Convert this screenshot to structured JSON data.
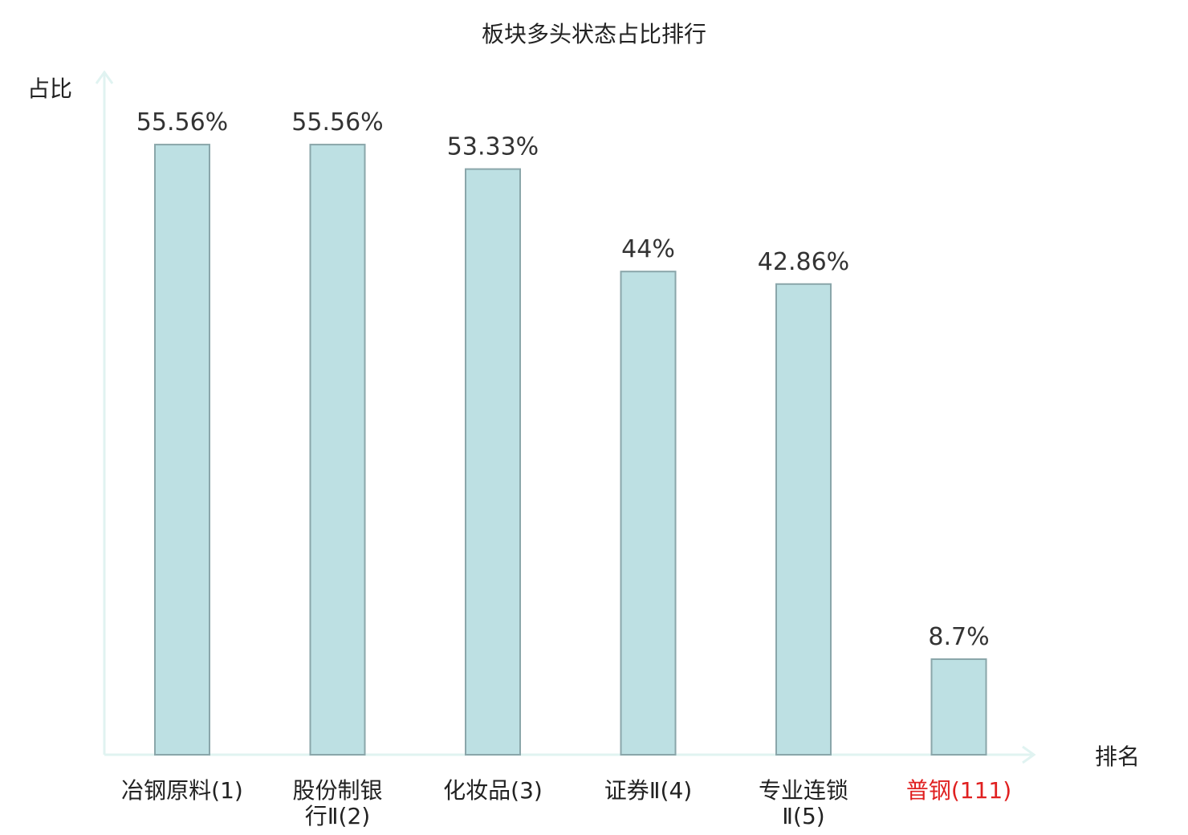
{
  "chart_data": {
    "type": "bar",
    "title": "板块多头状态占比排行",
    "ylabel": "占比",
    "xlabel": "排名",
    "ylim": [
      0,
      62
    ],
    "grid": false,
    "categories": [
      {
        "lines": [
          "冶钢原料(1)"
        ],
        "highlight": false
      },
      {
        "lines": [
          "股份制银",
          "行Ⅱ(2)"
        ],
        "highlight": false
      },
      {
        "lines": [
          "化妆品(3)"
        ],
        "highlight": false
      },
      {
        "lines": [
          "证券Ⅱ(4)"
        ],
        "highlight": false
      },
      {
        "lines": [
          "专业连锁",
          "Ⅱ(5)"
        ],
        "highlight": false
      },
      {
        "lines": [
          "普钢(111)"
        ],
        "highlight": true
      }
    ],
    "values": [
      55.56,
      55.56,
      53.33,
      44,
      42.86,
      8.7
    ],
    "value_labels": [
      "55.56%",
      "55.56%",
      "53.33%",
      "44%",
      "42.86%",
      "8.7%"
    ],
    "colors": {
      "bar_fill": "#bde0e3",
      "bar_stroke": "#8aa6aa",
      "axis": "#e0f3f1",
      "highlight_text": "#e02020",
      "text": "#222222"
    }
  }
}
